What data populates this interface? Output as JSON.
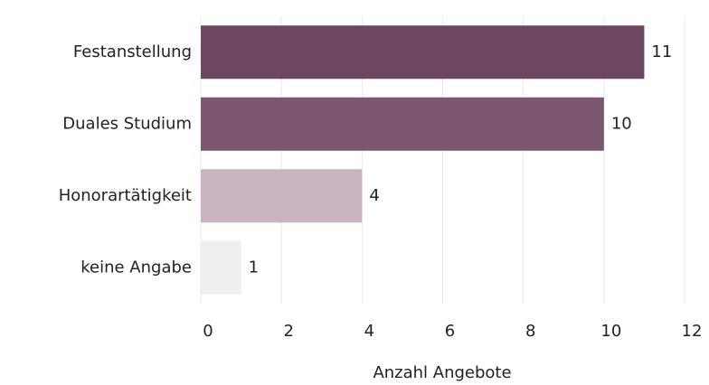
{
  "chart_data": {
    "type": "bar",
    "orientation": "horizontal",
    "categories": [
      "Festanstellung",
      "Duales Studium",
      "Honorartätigkeit",
      "keine Angabe"
    ],
    "values": [
      11,
      10,
      4,
      1
    ],
    "colors": [
      "#6d4660",
      "#7d566f",
      "#c9b3c1",
      "#efefef"
    ],
    "xlabel": "Anzahl Angebote",
    "xlim": [
      0,
      12
    ],
    "xticks": [
      0,
      2,
      4,
      6,
      8,
      10,
      12
    ],
    "grid": true
  }
}
